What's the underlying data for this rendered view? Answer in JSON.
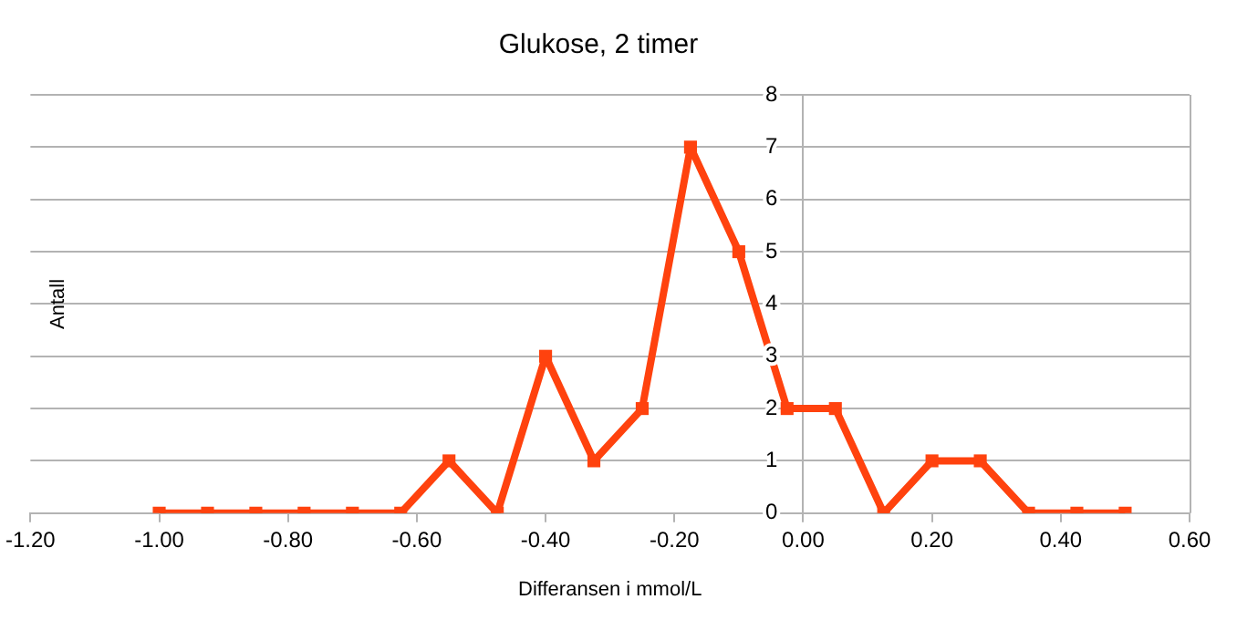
{
  "chart_data": {
    "type": "line",
    "title": "Glukose, 2 timer",
    "xlabel": "Differansen i mmol/L",
    "ylabel": "Antall",
    "x": [
      -1.0,
      -0.925,
      -0.85,
      -0.775,
      -0.7,
      -0.625,
      -0.55,
      -0.475,
      -0.4,
      -0.325,
      -0.25,
      -0.175,
      -0.1,
      -0.025,
      0.05,
      0.125,
      0.2,
      0.275,
      0.35,
      0.425,
      0.5
    ],
    "series": [
      {
        "color": "#ff420e",
        "values": [
          0,
          0,
          0,
          0,
          0,
          0,
          1,
          0,
          3,
          1,
          2,
          7,
          5,
          2,
          2,
          0,
          1,
          1,
          0,
          0,
          0
        ]
      }
    ],
    "xlim": [
      -1.2,
      0.6
    ],
    "xticks": [
      {
        "value": -1.2,
        "label": "-1.20"
      },
      {
        "value": -1.0,
        "label": "-1.00"
      },
      {
        "value": -0.8,
        "label": "-0.80"
      },
      {
        "value": -0.6,
        "label": "-0.60"
      },
      {
        "value": -0.4,
        "label": "-0.40"
      },
      {
        "value": -0.2,
        "label": "-0.20"
      },
      {
        "value": 0,
        "label": "0.00"
      },
      {
        "value": 0.2,
        "label": "0.20"
      },
      {
        "value": 0.4,
        "label": "0.40"
      },
      {
        "value": 0.6,
        "label": "0.60"
      }
    ],
    "ylim": [
      0,
      8
    ],
    "yticks": [
      0,
      1,
      2,
      3,
      4,
      5,
      6,
      7,
      8
    ],
    "grid": "y",
    "legend": false,
    "marker": "square",
    "line_style": "solid"
  }
}
